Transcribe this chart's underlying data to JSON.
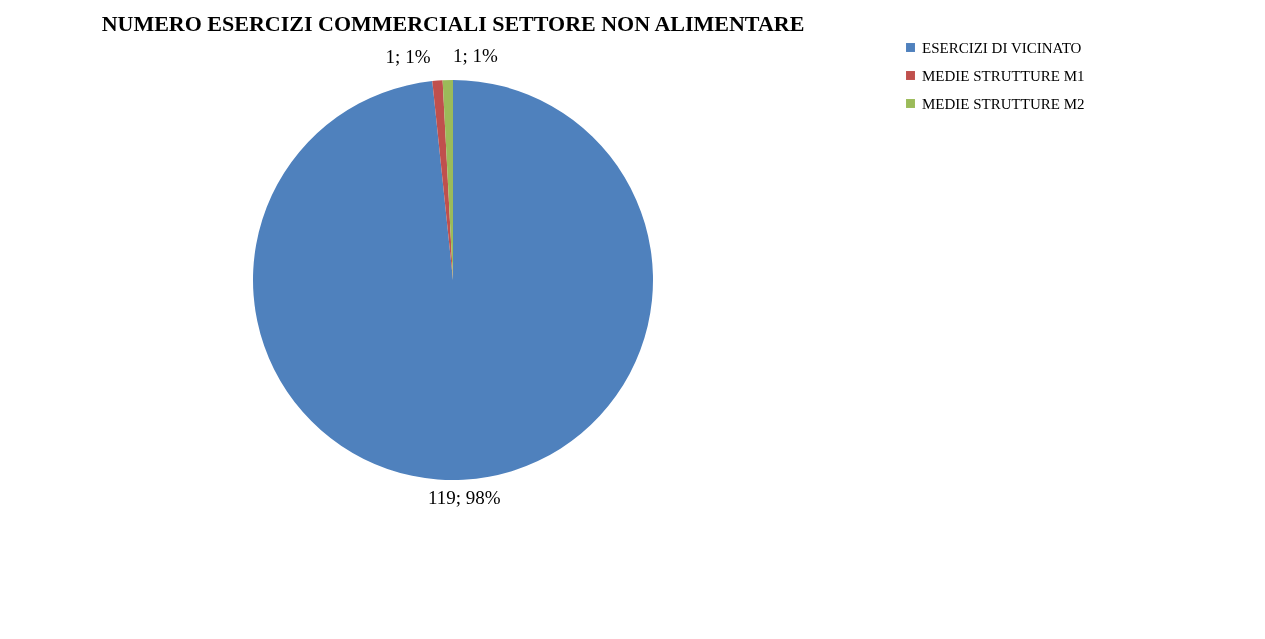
{
  "chart_data": {
    "type": "pie",
    "title": "NUMERO ESERCIZI COMMERCIALI SETTORE NON ALIMENTARE",
    "categories": [
      "ESERCIZI DI VICINATO",
      "MEDIE STRUTTURE M1",
      "MEDIE STRUTTURE M2"
    ],
    "values": [
      119,
      1,
      1
    ],
    "colors": [
      "#4f81bd",
      "#c0504d",
      "#9bbb59"
    ],
    "value_labels": [
      "119; 98%",
      "1; 1%",
      "1; 1%"
    ],
    "legend": "right"
  }
}
